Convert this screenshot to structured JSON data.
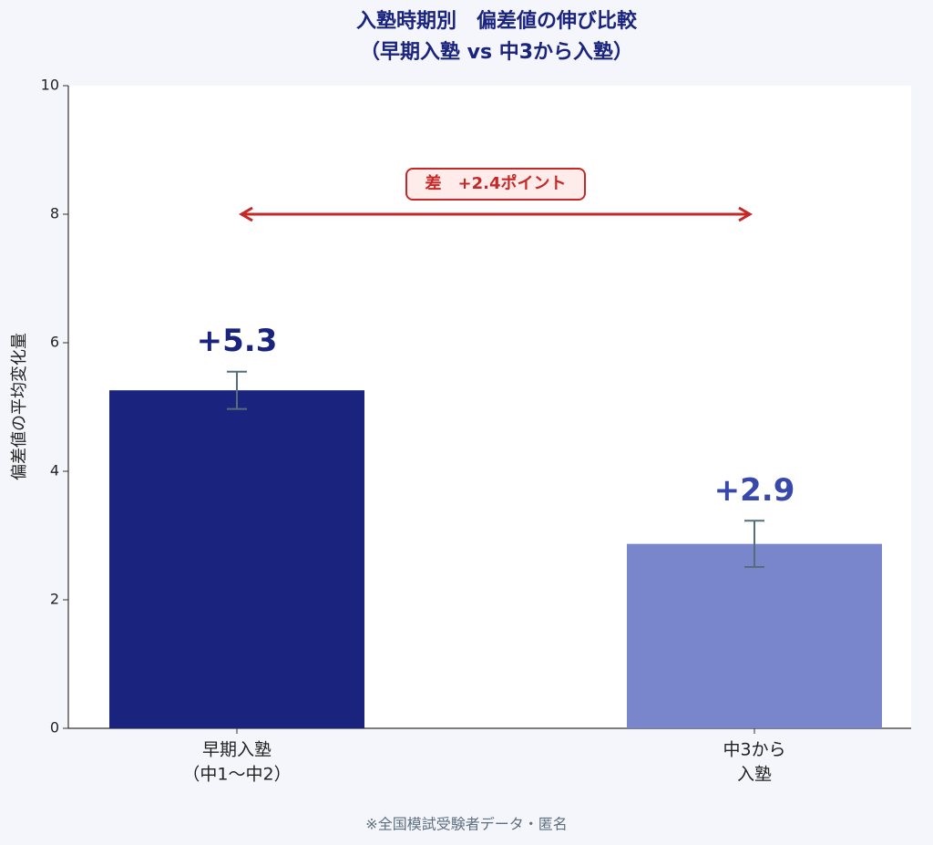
{
  "chart_data": {
    "type": "bar",
    "title": [
      "入塾時期別　偏差値の伸び比較",
      "（早期入塾 vs 中3から入塾）"
    ],
    "ylabel": "偏差値の平均変化量",
    "categories": [
      [
        "早期入塾",
        "（中1〜中2）"
      ],
      [
        "中3から",
        "入塾"
      ]
    ],
    "values": [
      5.26,
      2.87
    ],
    "value_labels": [
      "+5.3",
      "+2.9"
    ],
    "errors": [
      0.29,
      0.36
    ],
    "colors": [
      "#1a237e",
      "#7986cb"
    ],
    "label_colors": [
      "#1a237e",
      "#3949ab"
    ],
    "ylim": [
      0,
      10
    ],
    "yticks": [
      0,
      2,
      4,
      6,
      8,
      10
    ],
    "annotation": {
      "text": "差　+2.4ポイント",
      "y": 8
    },
    "footnote": "※全国模試受験者データ・匿名"
  }
}
